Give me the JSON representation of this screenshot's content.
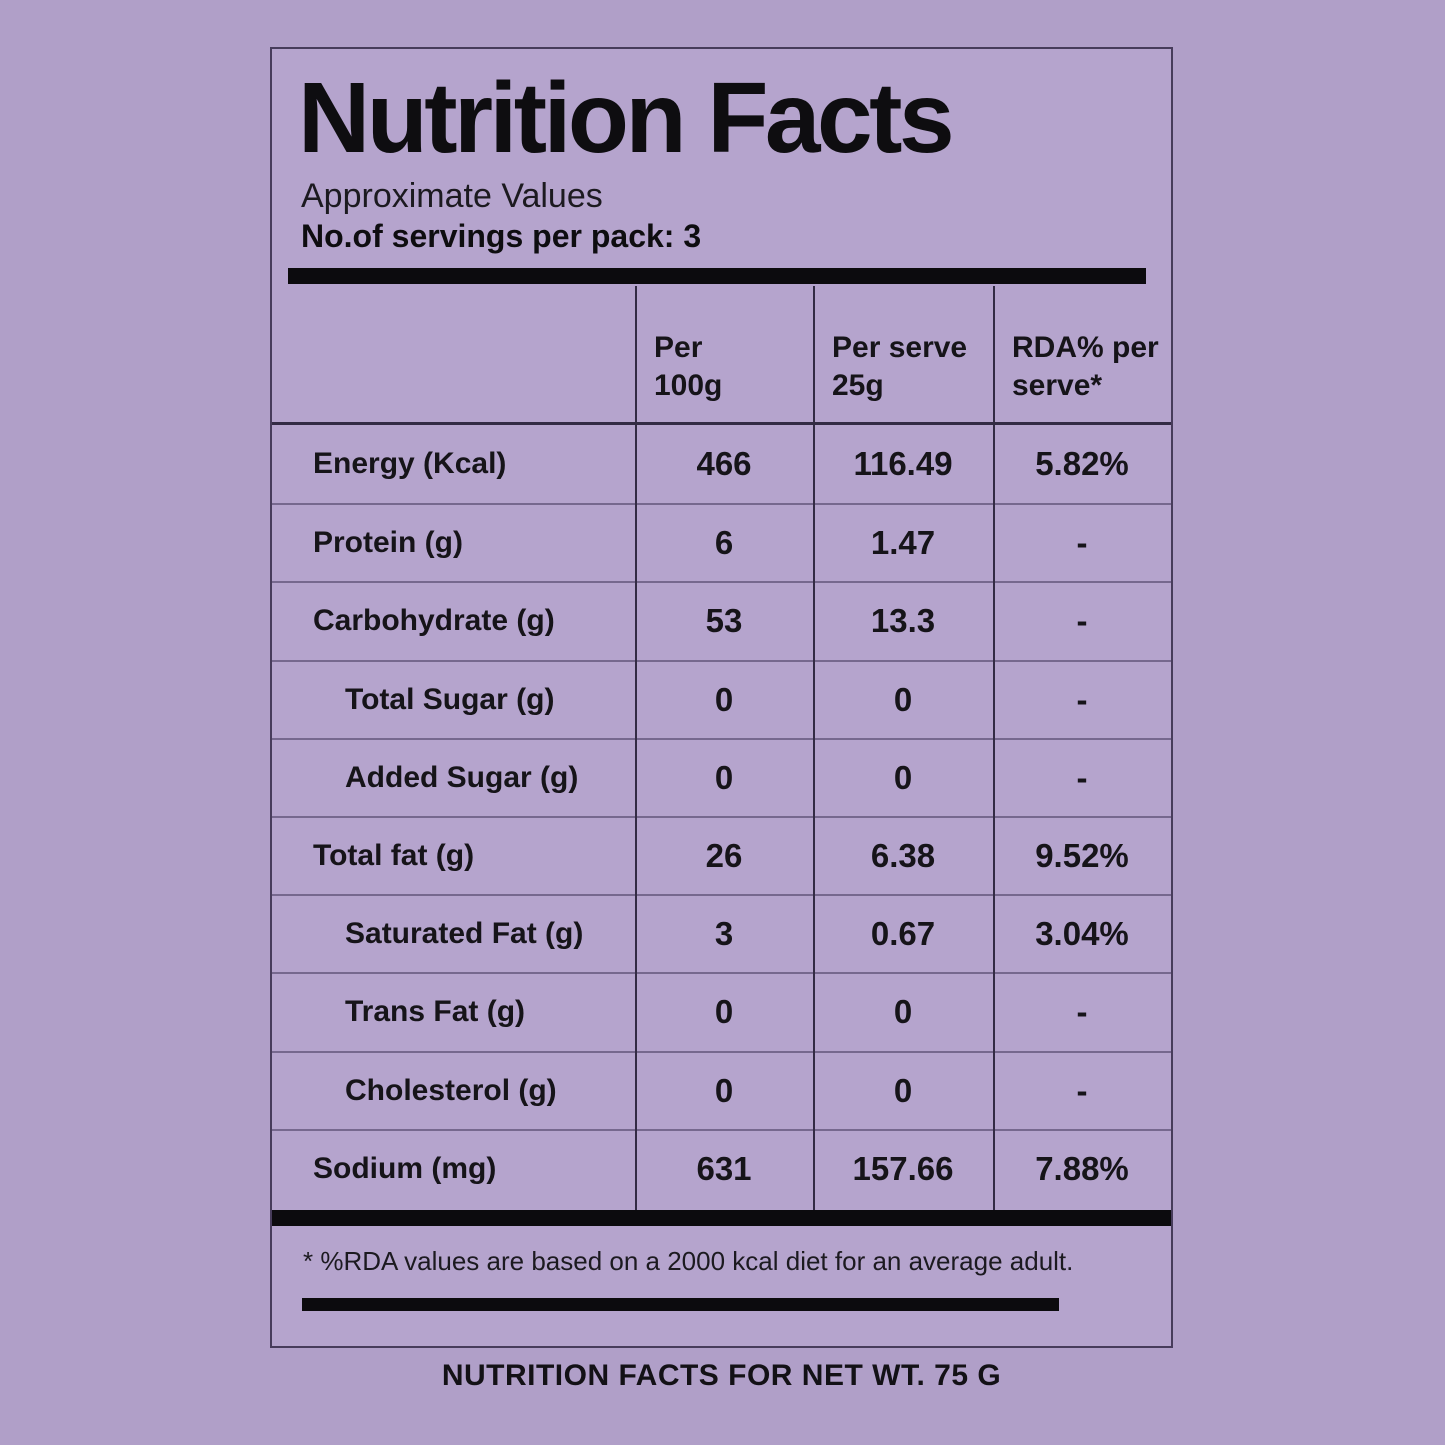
{
  "colors": {
    "page_bg": "#b09fc8",
    "box_bg": "#b5a4cd",
    "box_border": "#473c5b",
    "bar_black": "#0c0b0e",
    "text": "#19171c"
  },
  "header": {
    "title": "Nutrition Facts",
    "subtitle": "Approximate Values",
    "servings": "No.of servings per pack: 3"
  },
  "table": {
    "columns": [
      "",
      "Per\n100g",
      "Per serve\n25g",
      "RDA% per\nserve*"
    ],
    "rows": [
      {
        "label": "Energy (Kcal)",
        "per_100g": "466",
        "per_serve": "116.49",
        "rda": "5.82%",
        "indent": false
      },
      {
        "label": "Protein (g)",
        "per_100g": "6",
        "per_serve": "1.47",
        "rda": "-",
        "indent": false
      },
      {
        "label": "Carbohydrate (g)",
        "per_100g": "53",
        "per_serve": "13.3",
        "rda": "-",
        "indent": false
      },
      {
        "label": "Total Sugar (g)",
        "per_100g": "0",
        "per_serve": "0",
        "rda": "-",
        "indent": true
      },
      {
        "label": "Added Sugar (g)",
        "per_100g": "0",
        "per_serve": "0",
        "rda": "-",
        "indent": true
      },
      {
        "label": "Total fat (g)",
        "per_100g": "26",
        "per_serve": "6.38",
        "rda": "9.52%",
        "indent": false
      },
      {
        "label": "Saturated Fat (g)",
        "per_100g": "3",
        "per_serve": "0.67",
        "rda": "3.04%",
        "indent": true
      },
      {
        "label": "Trans Fat (g)",
        "per_100g": "0",
        "per_serve": "0",
        "rda": "-",
        "indent": true
      },
      {
        "label": "Cholesterol (g)",
        "per_100g": "0",
        "per_serve": "0",
        "rda": "-",
        "indent": true
      },
      {
        "label": "Sodium (mg)",
        "per_100g": "631",
        "per_serve": "157.66",
        "rda": "7.88%",
        "indent": false
      }
    ]
  },
  "footnote": "* %RDA values are based on a 2000 kcal diet for an average adult.",
  "caption": "NUTRITION FACTS FOR NET WT. 75 G"
}
